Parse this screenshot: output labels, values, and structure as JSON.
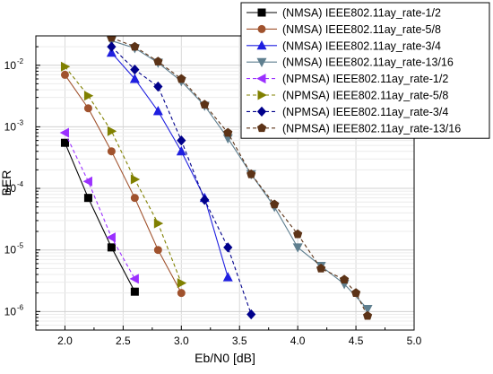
{
  "chart_data": {
    "type": "line",
    "xlabel": "Eb/N0 [dB]",
    "ylabel": "BER",
    "xlim": [
      1.75,
      5.0
    ],
    "ylim": [
      5e-07,
      0.03
    ],
    "yscale": "log",
    "grid": true,
    "legend_position": "top-right",
    "x_ticks": [
      2.0,
      2.5,
      3.0,
      3.5,
      4.0,
      4.5,
      5.0
    ],
    "x_tick_labels": [
      "2.0",
      "2.5",
      "3.0",
      "3.5",
      "4.0",
      "4.5",
      "5.0"
    ],
    "y_ticks": [
      1e-06,
      1e-05,
      0.0001,
      0.001,
      0.01
    ],
    "y_tick_labels": [
      {
        "base": "10",
        "exp": "-6"
      },
      {
        "base": "10",
        "exp": "-5"
      },
      {
        "base": "10",
        "exp": "-4"
      },
      {
        "base": "10",
        "exp": "-3"
      },
      {
        "base": "10",
        "exp": "-2"
      }
    ],
    "series": [
      {
        "name": "(NMSA) IEEE802.11ay_rate-1/2",
        "color": "#000000",
        "marker": "square",
        "dash": "solid",
        "x": [
          2.0,
          2.2,
          2.4,
          2.6
        ],
        "y": [
          0.00055,
          7e-05,
          1.1e-05,
          2.1e-06
        ]
      },
      {
        "name": "(NMSA) IEEE802.11ay_rate-5/8",
        "color": "#a0522d",
        "marker": "circle",
        "dash": "solid",
        "x": [
          2.0,
          2.2,
          2.4,
          2.6,
          2.8,
          3.0
        ],
        "y": [
          0.007,
          0.002,
          0.0004,
          7e-05,
          1e-05,
          2e-06
        ]
      },
      {
        "name": "(NMSA) IEEE802.11ay_rate-3/4",
        "color": "#1f1fe0",
        "marker": "triangle-up",
        "dash": "solid",
        "x": [
          2.4,
          2.6,
          2.8,
          3.0,
          3.2,
          3.4
        ],
        "y": [
          0.016,
          0.006,
          0.0018,
          0.0004,
          7e-05,
          3.6e-06
        ]
      },
      {
        "name": "(NMSA) IEEE802.11ay_rate-13/16",
        "color": "#5f7f8f",
        "marker": "triangle-down",
        "dash": "solid",
        "x": [
          2.4,
          2.6,
          2.8,
          3.0,
          3.2,
          3.4,
          3.6,
          3.8,
          4.0,
          4.2,
          4.4,
          4.6
        ],
        "y": [
          0.025,
          0.019,
          0.011,
          0.0055,
          0.0022,
          0.00065,
          0.00017,
          5e-05,
          1.1e-05,
          5.5e-06,
          2.8e-06,
          1.1e-06
        ]
      },
      {
        "name": "(NPMSA) IEEE802.11ay_rate-1/2",
        "color": "#9b30ff",
        "marker": "triangle-left",
        "dash": "dash",
        "x": [
          2.0,
          2.2,
          2.4,
          2.6
        ],
        "y": [
          0.0008,
          0.00013,
          1.6e-05,
          3.4e-06
        ]
      },
      {
        "name": "(NPMSA) IEEE802.11ay_rate-5/8",
        "color": "#808000",
        "marker": "triangle-right",
        "dash": "dash",
        "x": [
          2.0,
          2.2,
          2.4,
          2.6,
          2.8,
          3.0
        ],
        "y": [
          0.0095,
          0.0032,
          0.00085,
          0.00014,
          2.7e-05,
          2.9e-06
        ]
      },
      {
        "name": "(NPMSA) IEEE802.11ay_rate-3/4",
        "color": "#00008b",
        "marker": "diamond",
        "dash": "dash",
        "x": [
          2.4,
          2.6,
          2.8,
          3.0,
          3.2,
          3.4,
          3.6
        ],
        "y": [
          0.02,
          0.0085,
          0.0045,
          0.0006,
          6.5e-05,
          1.1e-05,
          9e-07
        ]
      },
      {
        "name": "(NPMSA) IEEE802.11ay_rate-13/16",
        "color": "#5c3317",
        "marker": "pentagon",
        "dash": "dash",
        "x": [
          2.4,
          2.6,
          2.8,
          3.0,
          3.2,
          3.4,
          3.6,
          3.8,
          4.0,
          4.2,
          4.4,
          4.5,
          4.6
        ],
        "y": [
          0.028,
          0.02,
          0.0115,
          0.006,
          0.0023,
          0.0008,
          0.00017,
          5.5e-05,
          1.8e-05,
          5e-06,
          3.3e-06,
          2e-06,
          8.5e-07
        ]
      }
    ]
  }
}
